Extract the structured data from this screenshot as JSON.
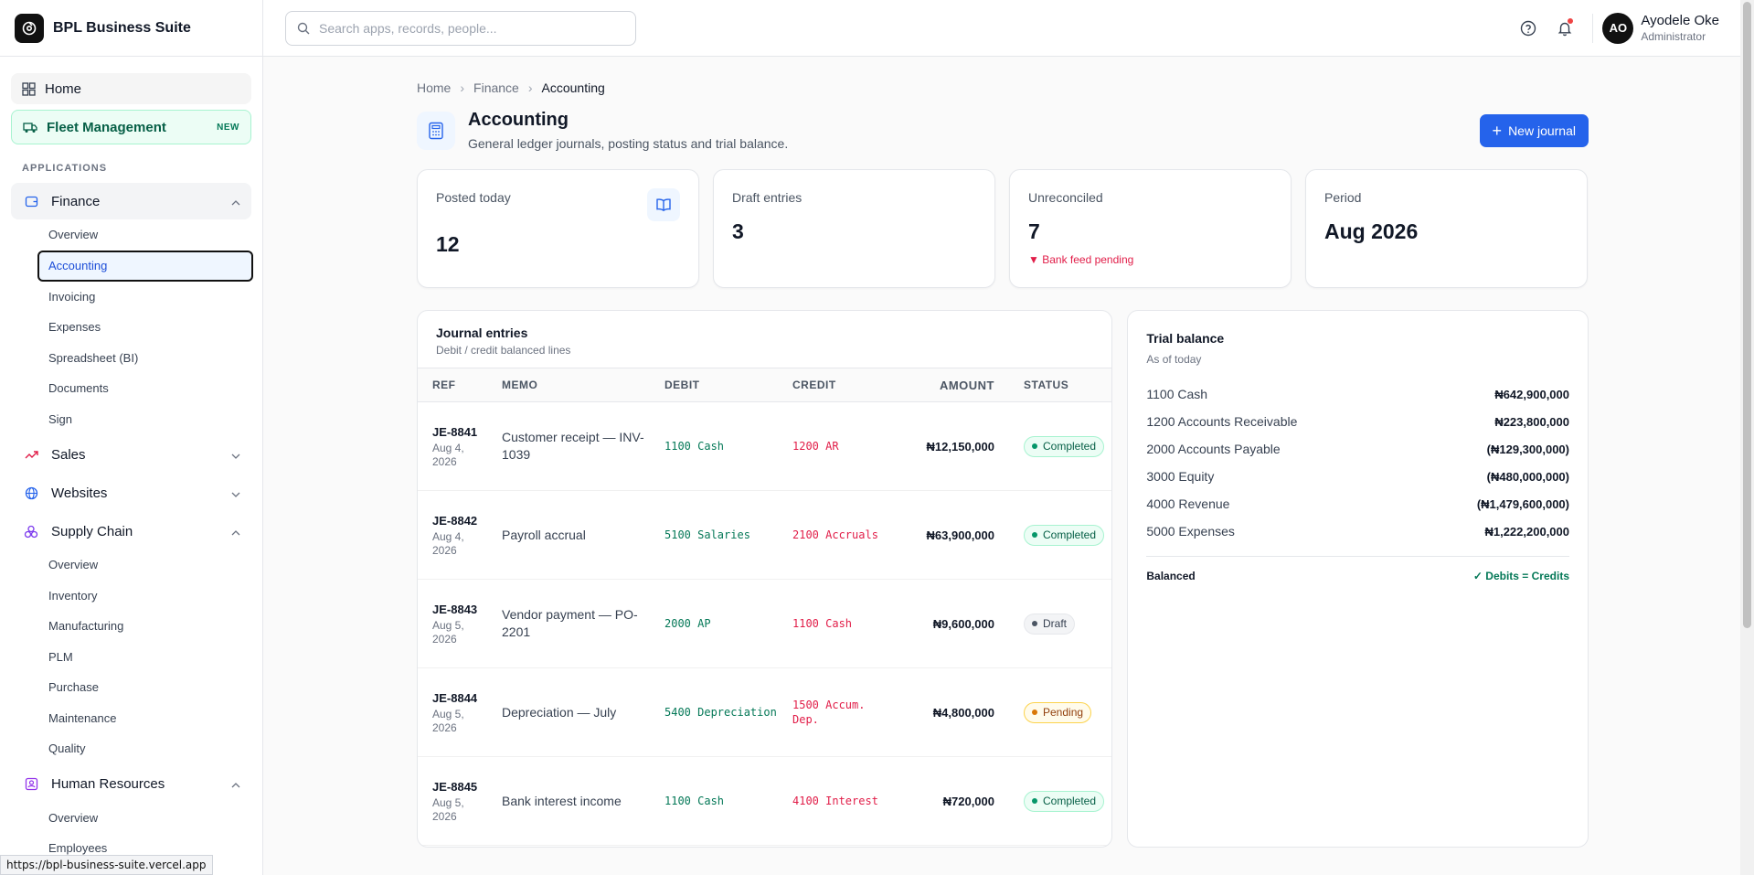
{
  "app": {
    "name": "BPL Business Suite"
  },
  "status_url": "https://bpl-business-suite.vercel.app",
  "sidebar": {
    "home": "Home",
    "fleet": {
      "label": "Fleet Management",
      "badge": "NEW"
    },
    "section_label": "APPLICATIONS",
    "finance": {
      "label": "Finance",
      "items": [
        "Overview",
        "Accounting",
        "Invoicing",
        "Expenses",
        "Spreadsheet (BI)",
        "Documents",
        "Sign"
      ]
    },
    "sales": "Sales",
    "websites": "Websites",
    "supply_chain": {
      "label": "Supply Chain",
      "items": [
        "Overview",
        "Inventory",
        "Manufacturing",
        "PLM",
        "Purchase",
        "Maintenance",
        "Quality"
      ]
    },
    "hr": {
      "label": "Human Resources",
      "items": [
        "Overview",
        "Employees"
      ]
    }
  },
  "header": {
    "search_placeholder": "Search apps, records, people...",
    "user": {
      "initials": "AO",
      "name": "Ayodele Oke",
      "role": "Administrator"
    }
  },
  "breadcrumb": [
    "Home",
    "Finance",
    "Accounting"
  ],
  "page": {
    "title": "Accounting",
    "subtitle": "General ledger journals, posting status and trial balance.",
    "new_button": "New journal"
  },
  "kpis": [
    {
      "label": "Posted today",
      "value": "12"
    },
    {
      "label": "Draft entries",
      "value": "3"
    },
    {
      "label": "Unreconciled",
      "value": "7",
      "note": "▼ Bank feed pending"
    },
    {
      "label": "Period",
      "value": "Aug 2026"
    }
  ],
  "journal": {
    "title": "Journal entries",
    "subtitle": "Debit / credit balanced lines",
    "columns": [
      "REF",
      "MEMO",
      "DEBIT",
      "CREDIT",
      "AMOUNT",
      "STATUS"
    ],
    "rows": [
      {
        "ref": "JE-8841",
        "date": "Aug 4, 2026",
        "memo": "Customer receipt — INV-1039",
        "debit": "1100 Cash",
        "credit": "1200 AR",
        "amount": "₦12,150,000",
        "status": "Completed"
      },
      {
        "ref": "JE-8842",
        "date": "Aug 4, 2026",
        "memo": "Payroll accrual",
        "debit": "5100 Salaries",
        "credit": "2100 Accruals",
        "amount": "₦63,900,000",
        "status": "Completed"
      },
      {
        "ref": "JE-8843",
        "date": "Aug 5, 2026",
        "memo": "Vendor payment — PO-2201",
        "debit": "2000 AP",
        "credit": "1100 Cash",
        "amount": "₦9,600,000",
        "status": "Draft"
      },
      {
        "ref": "JE-8844",
        "date": "Aug 5, 2026",
        "memo": "Depreciation — July",
        "debit": "5400 Depreciation",
        "credit": "1500 Accum. Dep.",
        "amount": "₦4,800,000",
        "status": "Pending"
      },
      {
        "ref": "JE-8845",
        "date": "Aug 5, 2026",
        "memo": "Bank interest income",
        "debit": "1100 Cash",
        "credit": "4100 Interest",
        "amount": "₦720,000",
        "status": "Completed"
      }
    ]
  },
  "trial_balance": {
    "title": "Trial balance",
    "subtitle": "As of today",
    "rows": [
      {
        "account": "1100 Cash",
        "amount": "₦642,900,000"
      },
      {
        "account": "1200 Accounts Receivable",
        "amount": "₦223,800,000"
      },
      {
        "account": "2000 Accounts Payable",
        "amount": "(₦129,300,000)"
      },
      {
        "account": "3000 Equity",
        "amount": "(₦480,000,000)"
      },
      {
        "account": "4000 Revenue",
        "amount": "(₦1,479,600,000)"
      },
      {
        "account": "5000 Expenses",
        "amount": "₦1,222,200,000"
      }
    ],
    "footer_label": "Balanced",
    "footer_value": "✓ Debits = Credits"
  }
}
